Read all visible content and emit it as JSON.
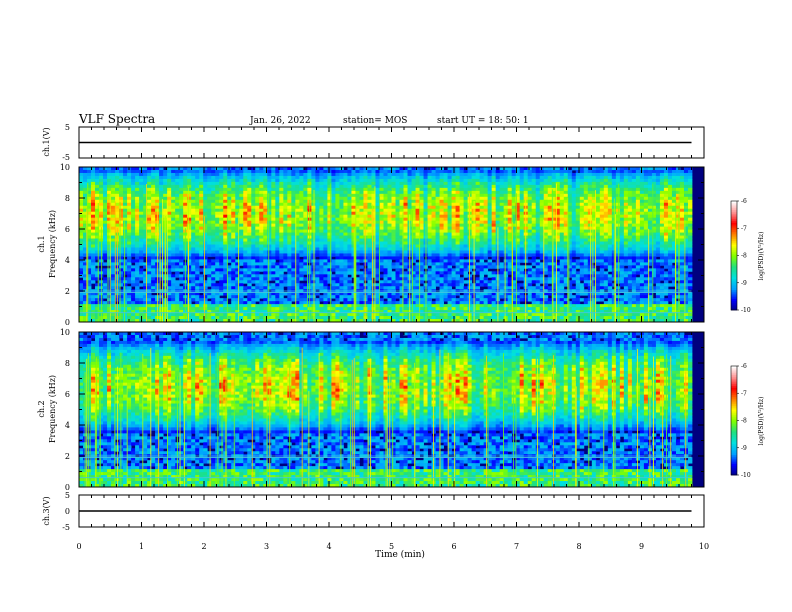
{
  "header": {
    "title": "VLF Spectra",
    "date": "Jan. 26, 2022",
    "station": "station= MOS",
    "start_ut": "start  UT  =   18: 50: 1"
  },
  "chart_data": [
    {
      "type": "line",
      "name": "ch1-voltage",
      "ylabel": "ch.1(V)",
      "ylim": [
        -5,
        5
      ],
      "yticks": [
        "5",
        "-5"
      ],
      "x": [
        0,
        9.8
      ],
      "values": [
        0,
        0
      ]
    },
    {
      "type": "heatmap",
      "name": "ch1-spectrogram",
      "ylabel": "ch.1\nFrequency (kHz)",
      "ylim": [
        0,
        10
      ],
      "yticks": [
        "0",
        "2",
        "4",
        "6",
        "8",
        "10"
      ],
      "xlim": [
        0,
        10
      ],
      "colorbar": {
        "label": "log(PSD)(V²/Hz)",
        "range": [
          -10,
          -6
        ],
        "ticks": [
          "-6",
          "-7",
          "-8",
          "-9",
          "-10"
        ]
      },
      "band": {
        "low_khz": 4,
        "high_khz": 9.8,
        "peak_khz": 7,
        "peak_log_psd": -7.2
      }
    },
    {
      "type": "heatmap",
      "name": "ch2-spectrogram",
      "ylabel": "ch.2\nFrequency (kHz)",
      "ylim": [
        0,
        10
      ],
      "yticks": [
        "0",
        "2",
        "4",
        "6",
        "8",
        "10"
      ],
      "xlim": [
        0,
        10
      ],
      "colorbar": {
        "label": "log(PSD)(V²/Hz)",
        "range": [
          -10,
          -6
        ],
        "ticks": [
          "-6",
          "-7",
          "-8",
          "-9",
          "-10"
        ]
      },
      "band": {
        "low_khz": 3.5,
        "high_khz": 9.5,
        "peak_khz": 6.5,
        "peak_log_psd": -7
      }
    },
    {
      "type": "line",
      "name": "ch3-voltage",
      "ylabel": "ch.3(V)",
      "ylim": [
        -5,
        5
      ],
      "yticks": [
        "5",
        "0",
        "-5"
      ],
      "x": [
        0,
        9.8
      ],
      "values": [
        0,
        0
      ]
    }
  ],
  "x_axis": {
    "label": "Time (min)",
    "range": [
      0,
      10
    ],
    "ticks": [
      "0",
      "1",
      "2",
      "3",
      "4",
      "5",
      "6",
      "7",
      "8",
      "9",
      "10"
    ]
  },
  "colors": {
    "colormap": [
      "#00007f",
      "#0000ff",
      "#00a0ff",
      "#00e0e0",
      "#20e080",
      "#80ff00",
      "#ffff00",
      "#ff8000",
      "#ff0000",
      "#ff9090",
      "#ffffff"
    ],
    "axis": "#000000",
    "background": "#ffffff"
  }
}
